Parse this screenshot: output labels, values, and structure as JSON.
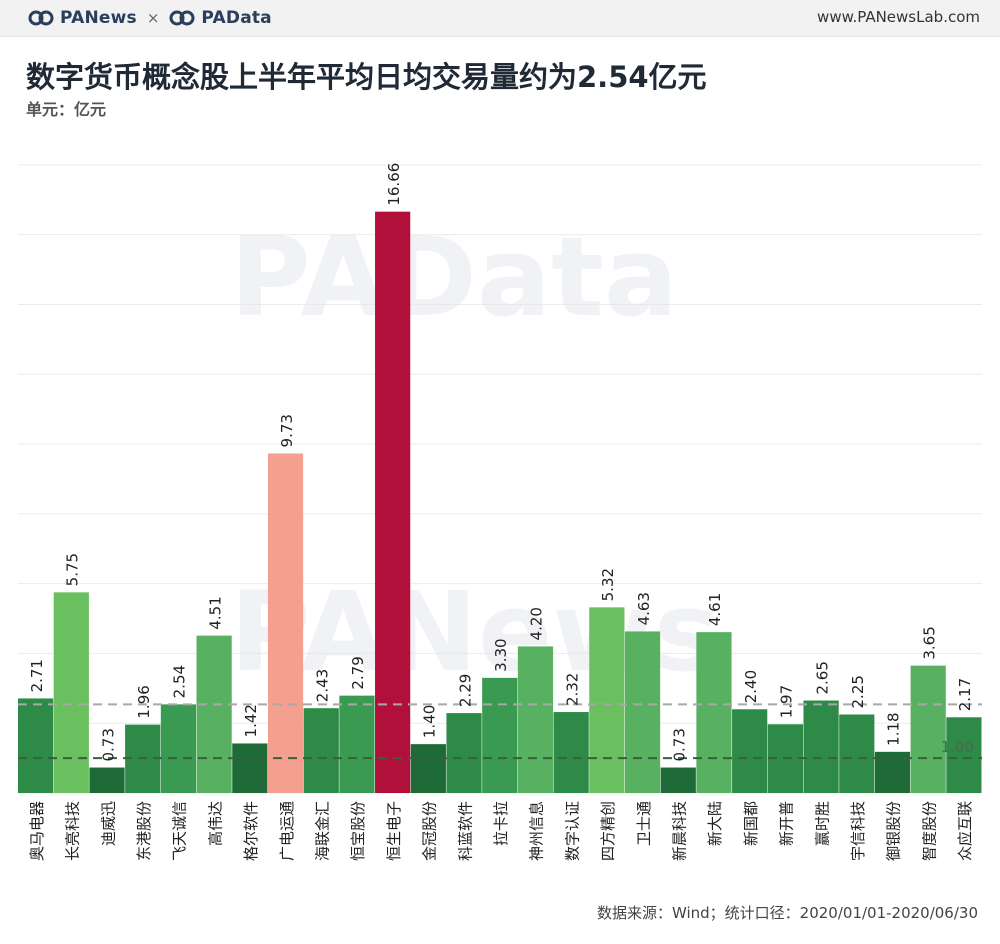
{
  "header": {
    "brand_left": "PANews",
    "brand_sep": "×",
    "brand_right": "PAData",
    "site": "www.PANewsLab.com"
  },
  "title": "数字货币概念股上半年平均日均交易量约为2.54亿元",
  "unit": "单元：亿元",
  "source": "数据来源：Wind；统计口径：2020/01/01-2020/06/30",
  "watermarks": [
    "PAData",
    "PANews"
  ],
  "colors": {
    "green_dark": "#1e6b38",
    "green_mid": "#2e8b47",
    "green_base": "#3a9a52",
    "green_light": "#58b160",
    "green_lighter": "#6abf5e",
    "salmon": "#f4a090",
    "crimson": "#b0103a",
    "ref_line_mean": "#a8a8a8",
    "ref_line_one": "#3a5f3a"
  },
  "chart_data": {
    "type": "bar",
    "title": "数字货币概念股上半年平均日均交易量约为2.54亿元",
    "ylabel": "单元：亿元",
    "ylim": [
      0,
      19
    ],
    "grid": true,
    "categories": [
      "奥马电器",
      "长亮科技",
      "迪威迅",
      "东港股份",
      "飞天诚信",
      "高伟达",
      "格尔软件",
      "广电运通",
      "海联金汇",
      "恒宝股份",
      "恒生电子",
      "金冠股份",
      "科蓝软件",
      "拉卡拉",
      "神州信息",
      "数字认证",
      "四方精创",
      "卫士通",
      "新晨科技",
      "新大陆",
      "新国都",
      "新开普",
      "赢时胜",
      "宇信科技",
      "御银股份",
      "智度股份",
      "众应互联"
    ],
    "values": [
      2.71,
      5.75,
      0.73,
      1.96,
      2.54,
      4.51,
      1.42,
      9.73,
      2.43,
      2.79,
      16.66,
      1.4,
      2.29,
      3.3,
      4.2,
      2.32,
      5.32,
      4.63,
      0.73,
      4.61,
      2.4,
      1.97,
      2.65,
      2.25,
      1.18,
      3.65,
      2.17
    ],
    "value_labels": [
      "2.71",
      "5.75",
      "0.73",
      "1.96",
      "2.54",
      "4.51",
      "1.42",
      "9.73",
      "2.43",
      "2.79",
      "16.66",
      "1.40",
      "2.29",
      "3.30",
      "4.20",
      "2.32",
      "5.32",
      "4.63",
      "0.73",
      "4.61",
      "2.40",
      "1.97",
      "2.65",
      "2.25",
      "1.18",
      "3.65",
      "2.17"
    ],
    "bar_colors": [
      "#2e8b47",
      "#6abf5e",
      "#1e6b38",
      "#2e8b47",
      "#3a9a52",
      "#58b160",
      "#1e6b38",
      "#f4a090",
      "#2e8b47",
      "#3a9a52",
      "#b0103a",
      "#1e6b38",
      "#2e8b47",
      "#3a9a52",
      "#58b160",
      "#2e8b47",
      "#6abf5e",
      "#58b160",
      "#1e6b38",
      "#58b160",
      "#2e8b47",
      "#2e8b47",
      "#2e8b47",
      "#2e8b47",
      "#1e6b38",
      "#58b160",
      "#2e8b47"
    ],
    "reference_lines": [
      {
        "value": 2.54,
        "style": "dashed",
        "color": "#a8a8a8"
      },
      {
        "value": 1.0,
        "style": "dashed",
        "color": "#3a5f3a",
        "label": "1.00"
      }
    ]
  }
}
